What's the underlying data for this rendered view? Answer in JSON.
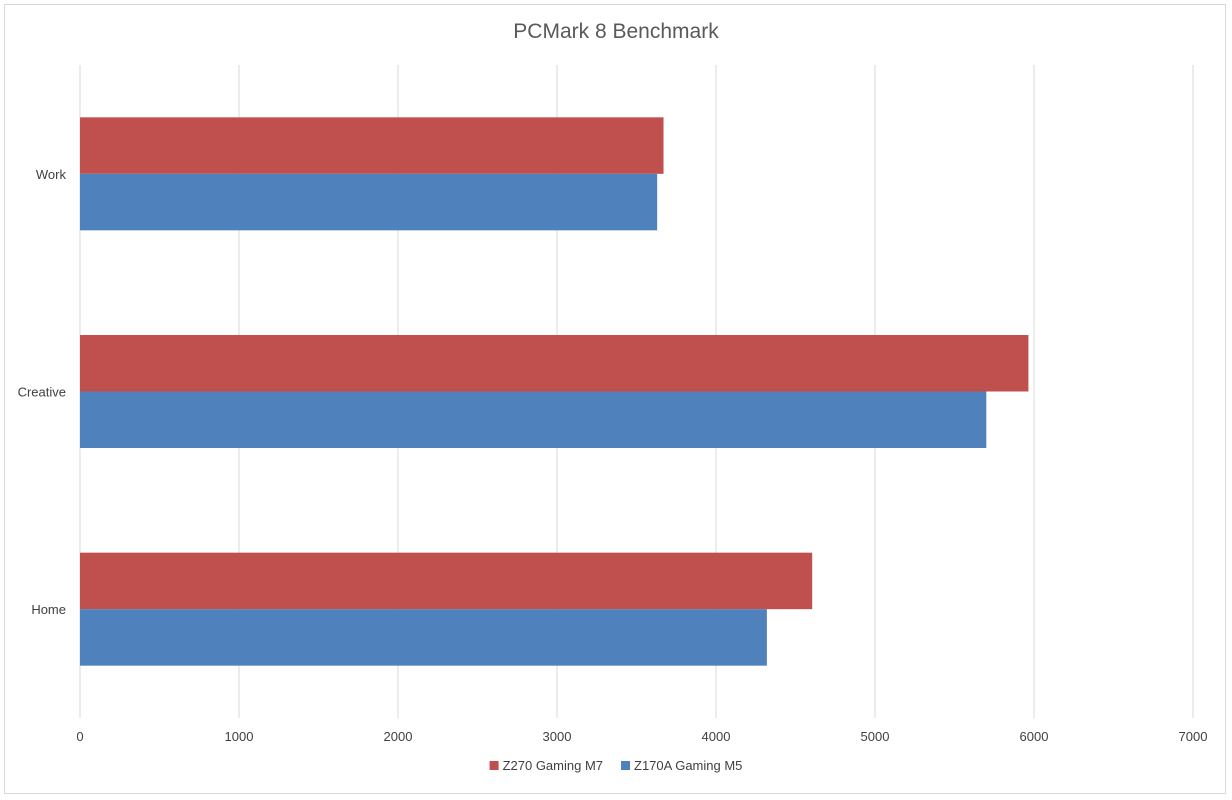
{
  "chart_data": {
    "type": "bar",
    "orientation": "horizontal",
    "title": "PCMark 8 Benchmark",
    "categories": [
      "Work",
      "Creative",
      "Home"
    ],
    "series": [
      {
        "name": "Z270 Gaming M7",
        "values": [
          3670,
          5965,
          4605
        ],
        "color": "#c0504d"
      },
      {
        "name": "Z170A Gaming M5",
        "values": [
          3630,
          5700,
          4320
        ],
        "color": "#4f81bd"
      }
    ],
    "x_ticks": [
      "0",
      "1000",
      "2000",
      "3000",
      "4000",
      "5000",
      "6000",
      "7000"
    ],
    "xlim": [
      0,
      7000
    ],
    "xlabel": "",
    "ylabel": "",
    "grid": true,
    "legend_position": "bottom"
  }
}
